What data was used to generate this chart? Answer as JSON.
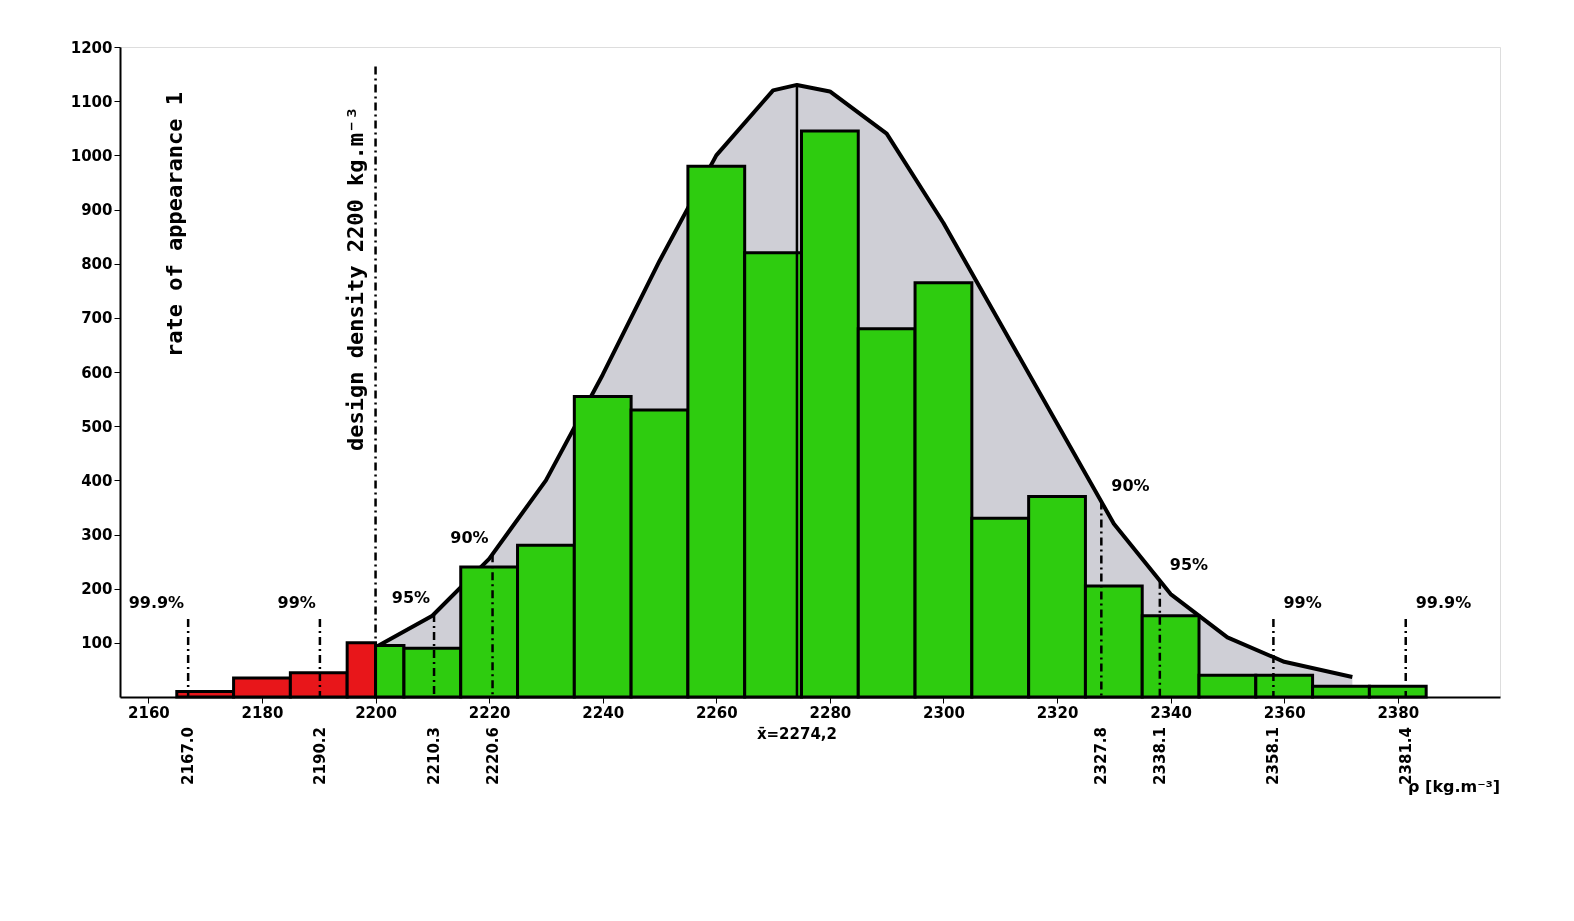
{
  "chart_data": {
    "type": "histogram",
    "ylabel": "rate of appearance  1",
    "xlabel": "ρ [kg.m⁻³]",
    "bins": [
      2165,
      2175,
      2185,
      2195,
      2200,
      2205,
      2215,
      2225,
      2235,
      2245,
      2255,
      2265,
      2275,
      2285,
      2295,
      2305,
      2315,
      2325,
      2335,
      2345,
      2355,
      2365,
      2375,
      2385
    ],
    "values": [
      10,
      35,
      45,
      100,
      95,
      90,
      240,
      280,
      555,
      530,
      980,
      820,
      1045,
      680,
      765,
      330,
      370,
      205,
      150,
      40,
      40,
      20,
      20
    ],
    "colors": [
      "#e8161a",
      "#e8161a",
      "#e8161a",
      "#e8161a",
      "#2ecc0f",
      "#2ecc0f",
      "#2ecc0f",
      "#2ecc0f",
      "#2ecc0f",
      "#2ecc0f",
      "#2ecc0f",
      "#2ecc0f",
      "#2ecc0f",
      "#2ecc0f",
      "#2ecc0f",
      "#2ecc0f",
      "#2ecc0f",
      "#2ecc0f",
      "#2ecc0f",
      "#2ecc0f",
      "#2ecc0f",
      "#2ecc0f",
      "#2ecc0f"
    ],
    "series": [
      {
        "type": "area",
        "color": "#cfcfd6",
        "x": [
          2195,
          2200,
          2210,
          2220,
          2230,
          2240,
          2250,
          2260,
          2270,
          2274.2,
          2280,
          2290,
          2300,
          2310,
          2320,
          2330,
          2340,
          2350,
          2360,
          2372
        ],
        "values": [
          80,
          92,
          150,
          255,
          400,
          595,
          805,
          1000,
          1120,
          1130,
          1118,
          1040,
          875,
          690,
          505,
          320,
          190,
          110,
          65,
          37
        ]
      }
    ],
    "xlim": [
      2155,
      2398
    ],
    "xticks": [
      2160,
      2180,
      2200,
      2220,
      2240,
      2260,
      2280,
      2300,
      2320,
      2340,
      2360,
      2380
    ],
    "ylim": [
      0,
      1200
    ],
    "yticks": [
      100,
      200,
      300,
      400,
      500,
      600,
      700,
      800,
      900,
      1000,
      1100,
      1200
    ],
    "ref_lines": [
      {
        "axis": "x",
        "value": 2200,
        "label": "design density 2200 kg.m⁻³",
        "line_style": "dashed"
      },
      {
        "axis": "x",
        "value": 2274.2,
        "label": "x̄=2274,2",
        "line_style": "solid"
      },
      {
        "axis": "x",
        "value": 2167.0,
        "label": "2167.0",
        "line_style": "dashed"
      },
      {
        "axis": "x",
        "value": 2190.2,
        "label": "2190.2",
        "line_style": "dashed"
      },
      {
        "axis": "x",
        "value": 2210.3,
        "label": "2210.3",
        "line_style": "dashed"
      },
      {
        "axis": "x",
        "value": 2220.6,
        "label": "2220.6",
        "line_style": "dashed"
      },
      {
        "axis": "x",
        "value": 2327.8,
        "label": "2327.8",
        "line_style": "dashed"
      },
      {
        "axis": "x",
        "value": 2338.1,
        "label": "2338.1",
        "line_style": "dashed"
      },
      {
        "axis": "x",
        "value": 2358.1,
        "label": "2358.1",
        "line_style": "dashed"
      },
      {
        "axis": "x",
        "value": 2381.4,
        "label": "2381.4",
        "line_style": "dashed"
      }
    ],
    "annotations": [
      "99.9%",
      "99%",
      "95%",
      "90%",
      "90%",
      "95%",
      "99%",
      "99.9%"
    ],
    "grid": false
  }
}
